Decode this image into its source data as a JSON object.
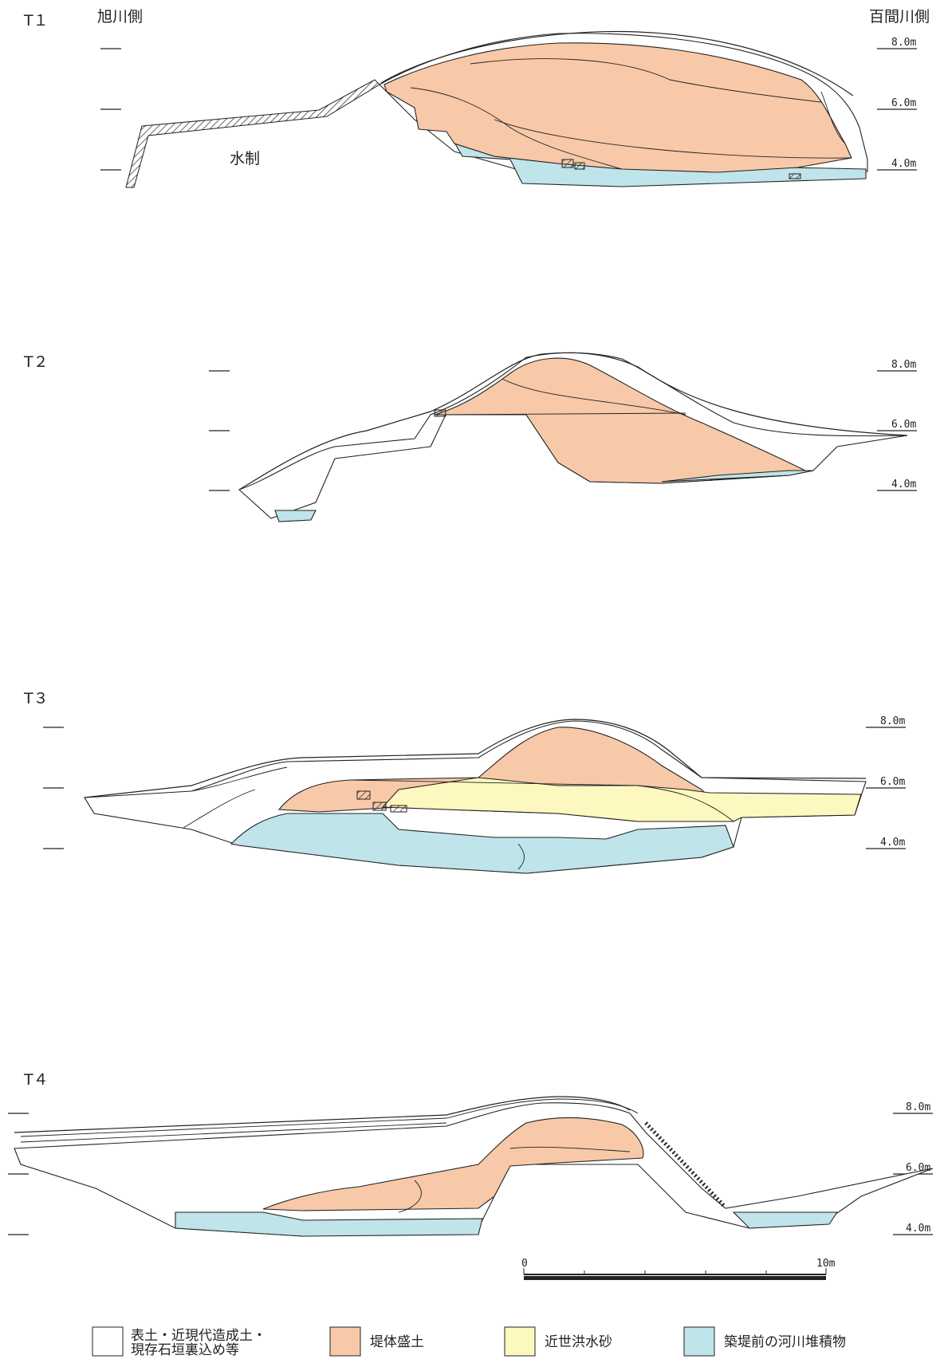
{
  "sides": {
    "left": "旭川側",
    "right": "百間川側"
  },
  "annotations": {
    "groyne": "水制"
  },
  "sections": [
    {
      "id": "T１",
      "elevations": [
        "8.0m",
        "6.0m",
        "4.0m"
      ]
    },
    {
      "id": "T２",
      "elevations": [
        "8.0m",
        "6.0m",
        "4.0m"
      ]
    },
    {
      "id": "T３",
      "elevations": [
        "8.0m",
        "6.0m",
        "4.0m"
      ]
    },
    {
      "id": "T４",
      "elevations": [
        "8.0m",
        "6.0m",
        "4.0m"
      ]
    }
  ],
  "scale": {
    "start": "0",
    "end": "10m"
  },
  "legend": [
    {
      "label_line1": "表土・近現代造成土・",
      "label_line2": "現存石垣裏込め等",
      "color": "#ffffff"
    },
    {
      "label_line1": "堤体盛土",
      "label_line2": "",
      "color": "#f7c9a8"
    },
    {
      "label_line1": "近世洪水砂",
      "label_line2": "",
      "color": "#fdf7c0"
    },
    {
      "label_line1": "築堤前の河川堆積物",
      "label_line2": "",
      "color": "#bfe4ea"
    }
  ]
}
